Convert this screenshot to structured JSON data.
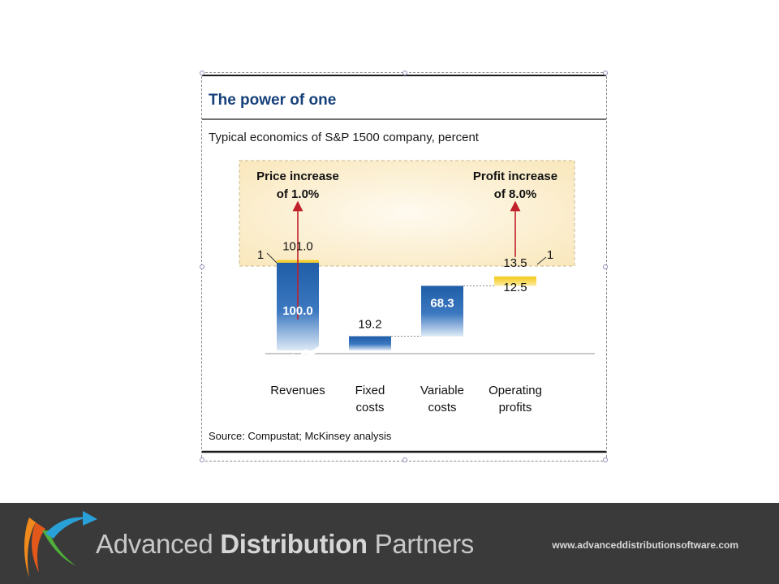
{
  "chart_data": {
    "type": "bar",
    "title": "The power of one",
    "subtitle": "Typical economics of S&P 1500 company, percent",
    "categories": [
      {
        "line1": "Revenues",
        "line2": ""
      },
      {
        "line1": "Fixed",
        "line2": "costs"
      },
      {
        "line1": "Variable",
        "line2": "costs"
      },
      {
        "line1": "Operating",
        "line2": "profits"
      }
    ],
    "values": [
      100.0,
      19.2,
      68.3,
      12.5
    ],
    "value_labels": [
      "100.0",
      "19.2",
      "68.3",
      "12.5"
    ],
    "increase_values": [
      1,
      1
    ],
    "increase_markers": [
      "1",
      "1"
    ],
    "increase_totals": [
      "101.0",
      "13.5"
    ],
    "callouts": [
      {
        "line1": "Price increase",
        "line2": "of 1.0%"
      },
      {
        "line1": "Profit increase",
        "line2": "of 8.0%"
      }
    ],
    "source": "Source: Compustat; McKinsey analysis",
    "colors": {
      "bar": "#1f5ea8",
      "increase": "#f2c21b",
      "arrow": "#c0202a",
      "title": "#16407a",
      "callout_bg": "#fdf3d6"
    }
  },
  "footer": {
    "company_regular_1": "Advanced ",
    "company_bold": "Distribution",
    "company_regular_2": " Partners",
    "website": "www.advanceddistributionsoftware.com"
  }
}
